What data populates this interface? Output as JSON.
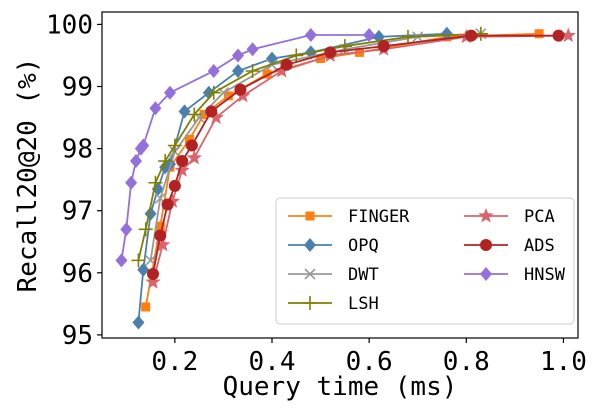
{
  "chart_data": {
    "type": "line",
    "xlabel": "Query time (ms)",
    "ylabel": "Recall20@20 (%)",
    "xlim": [
      0.05,
      1.03
    ],
    "ylim": [
      94.95,
      100.2
    ],
    "xticks": [
      0.2,
      0.4,
      0.6,
      0.8,
      1.0
    ],
    "xtick_labels": [
      "0.2",
      "0.4",
      "0.6",
      "0.8",
      "1.0"
    ],
    "yticks": [
      95,
      96,
      97,
      98,
      99,
      100
    ],
    "ytick_labels": [
      "95",
      "96",
      "97",
      "98",
      "99",
      "100"
    ],
    "grid": false,
    "legend_position": "lower-right",
    "legend_columns": 2,
    "series": [
      {
        "name": "FINGER",
        "color": "#ff7f0e",
        "marker": "square",
        "x": [
          0.14,
          0.17,
          0.19,
          0.23,
          0.26,
          0.31,
          0.39,
          0.5,
          0.58,
          0.76,
          0.95
        ],
        "y": [
          95.45,
          96.75,
          97.7,
          98.15,
          98.55,
          98.85,
          99.2,
          99.45,
          99.55,
          99.8,
          99.85
        ]
      },
      {
        "name": "OPQ",
        "color": "#4a7fb0",
        "marker": "diamond",
        "x": [
          0.125,
          0.135,
          0.15,
          0.165,
          0.18,
          0.19,
          0.22,
          0.27,
          0.33,
          0.4,
          0.48,
          0.62,
          0.76
        ],
        "y": [
          95.2,
          96.05,
          96.95,
          97.35,
          97.7,
          97.75,
          98.6,
          98.9,
          99.25,
          99.45,
          99.55,
          99.8,
          99.85
        ]
      },
      {
        "name": "DWT",
        "color": "#999999",
        "marker": "x",
        "x": [
          0.15,
          0.17,
          0.2,
          0.25,
          0.3,
          0.4,
          0.55,
          0.7,
          0.83
        ],
        "y": [
          96.2,
          97.2,
          97.95,
          98.5,
          98.9,
          99.35,
          99.6,
          99.8,
          99.85
        ]
      },
      {
        "name": "LSH",
        "color": "#808000",
        "marker": "plus",
        "x": [
          0.125,
          0.14,
          0.16,
          0.18,
          0.2,
          0.24,
          0.28,
          0.36,
          0.45,
          0.55,
          0.68,
          0.83
        ],
        "y": [
          96.2,
          96.7,
          97.45,
          97.8,
          98.05,
          98.55,
          98.9,
          99.25,
          99.5,
          99.65,
          99.8,
          99.85
        ]
      },
      {
        "name": "PCA",
        "color": "#d9646c",
        "marker": "star",
        "x": [
          0.155,
          0.175,
          0.195,
          0.215,
          0.24,
          0.285,
          0.34,
          0.42,
          0.52,
          0.63,
          0.8,
          1.01
        ],
        "y": [
          95.85,
          96.45,
          97.15,
          97.65,
          97.85,
          98.5,
          98.85,
          99.25,
          99.5,
          99.6,
          99.8,
          99.82
        ]
      },
      {
        "name": "ADS",
        "color": "#b22222",
        "marker": "circle",
        "x": [
          0.155,
          0.17,
          0.185,
          0.2,
          0.215,
          0.235,
          0.275,
          0.335,
          0.43,
          0.52,
          0.63,
          0.81,
          0.99
        ],
        "y": [
          95.98,
          96.6,
          97.1,
          97.4,
          97.8,
          98.05,
          98.6,
          98.95,
          99.35,
          99.55,
          99.65,
          99.82,
          99.82
        ]
      },
      {
        "name": "HNSW",
        "color": "#9370db",
        "marker": "diamond",
        "x": [
          0.09,
          0.1,
          0.11,
          0.12,
          0.13,
          0.135,
          0.16,
          0.19,
          0.28,
          0.33,
          0.36,
          0.48,
          0.6
        ],
        "y": [
          96.2,
          96.7,
          97.45,
          97.8,
          98.0,
          98.05,
          98.65,
          98.9,
          99.25,
          99.5,
          99.6,
          99.83,
          99.83
        ]
      }
    ]
  }
}
